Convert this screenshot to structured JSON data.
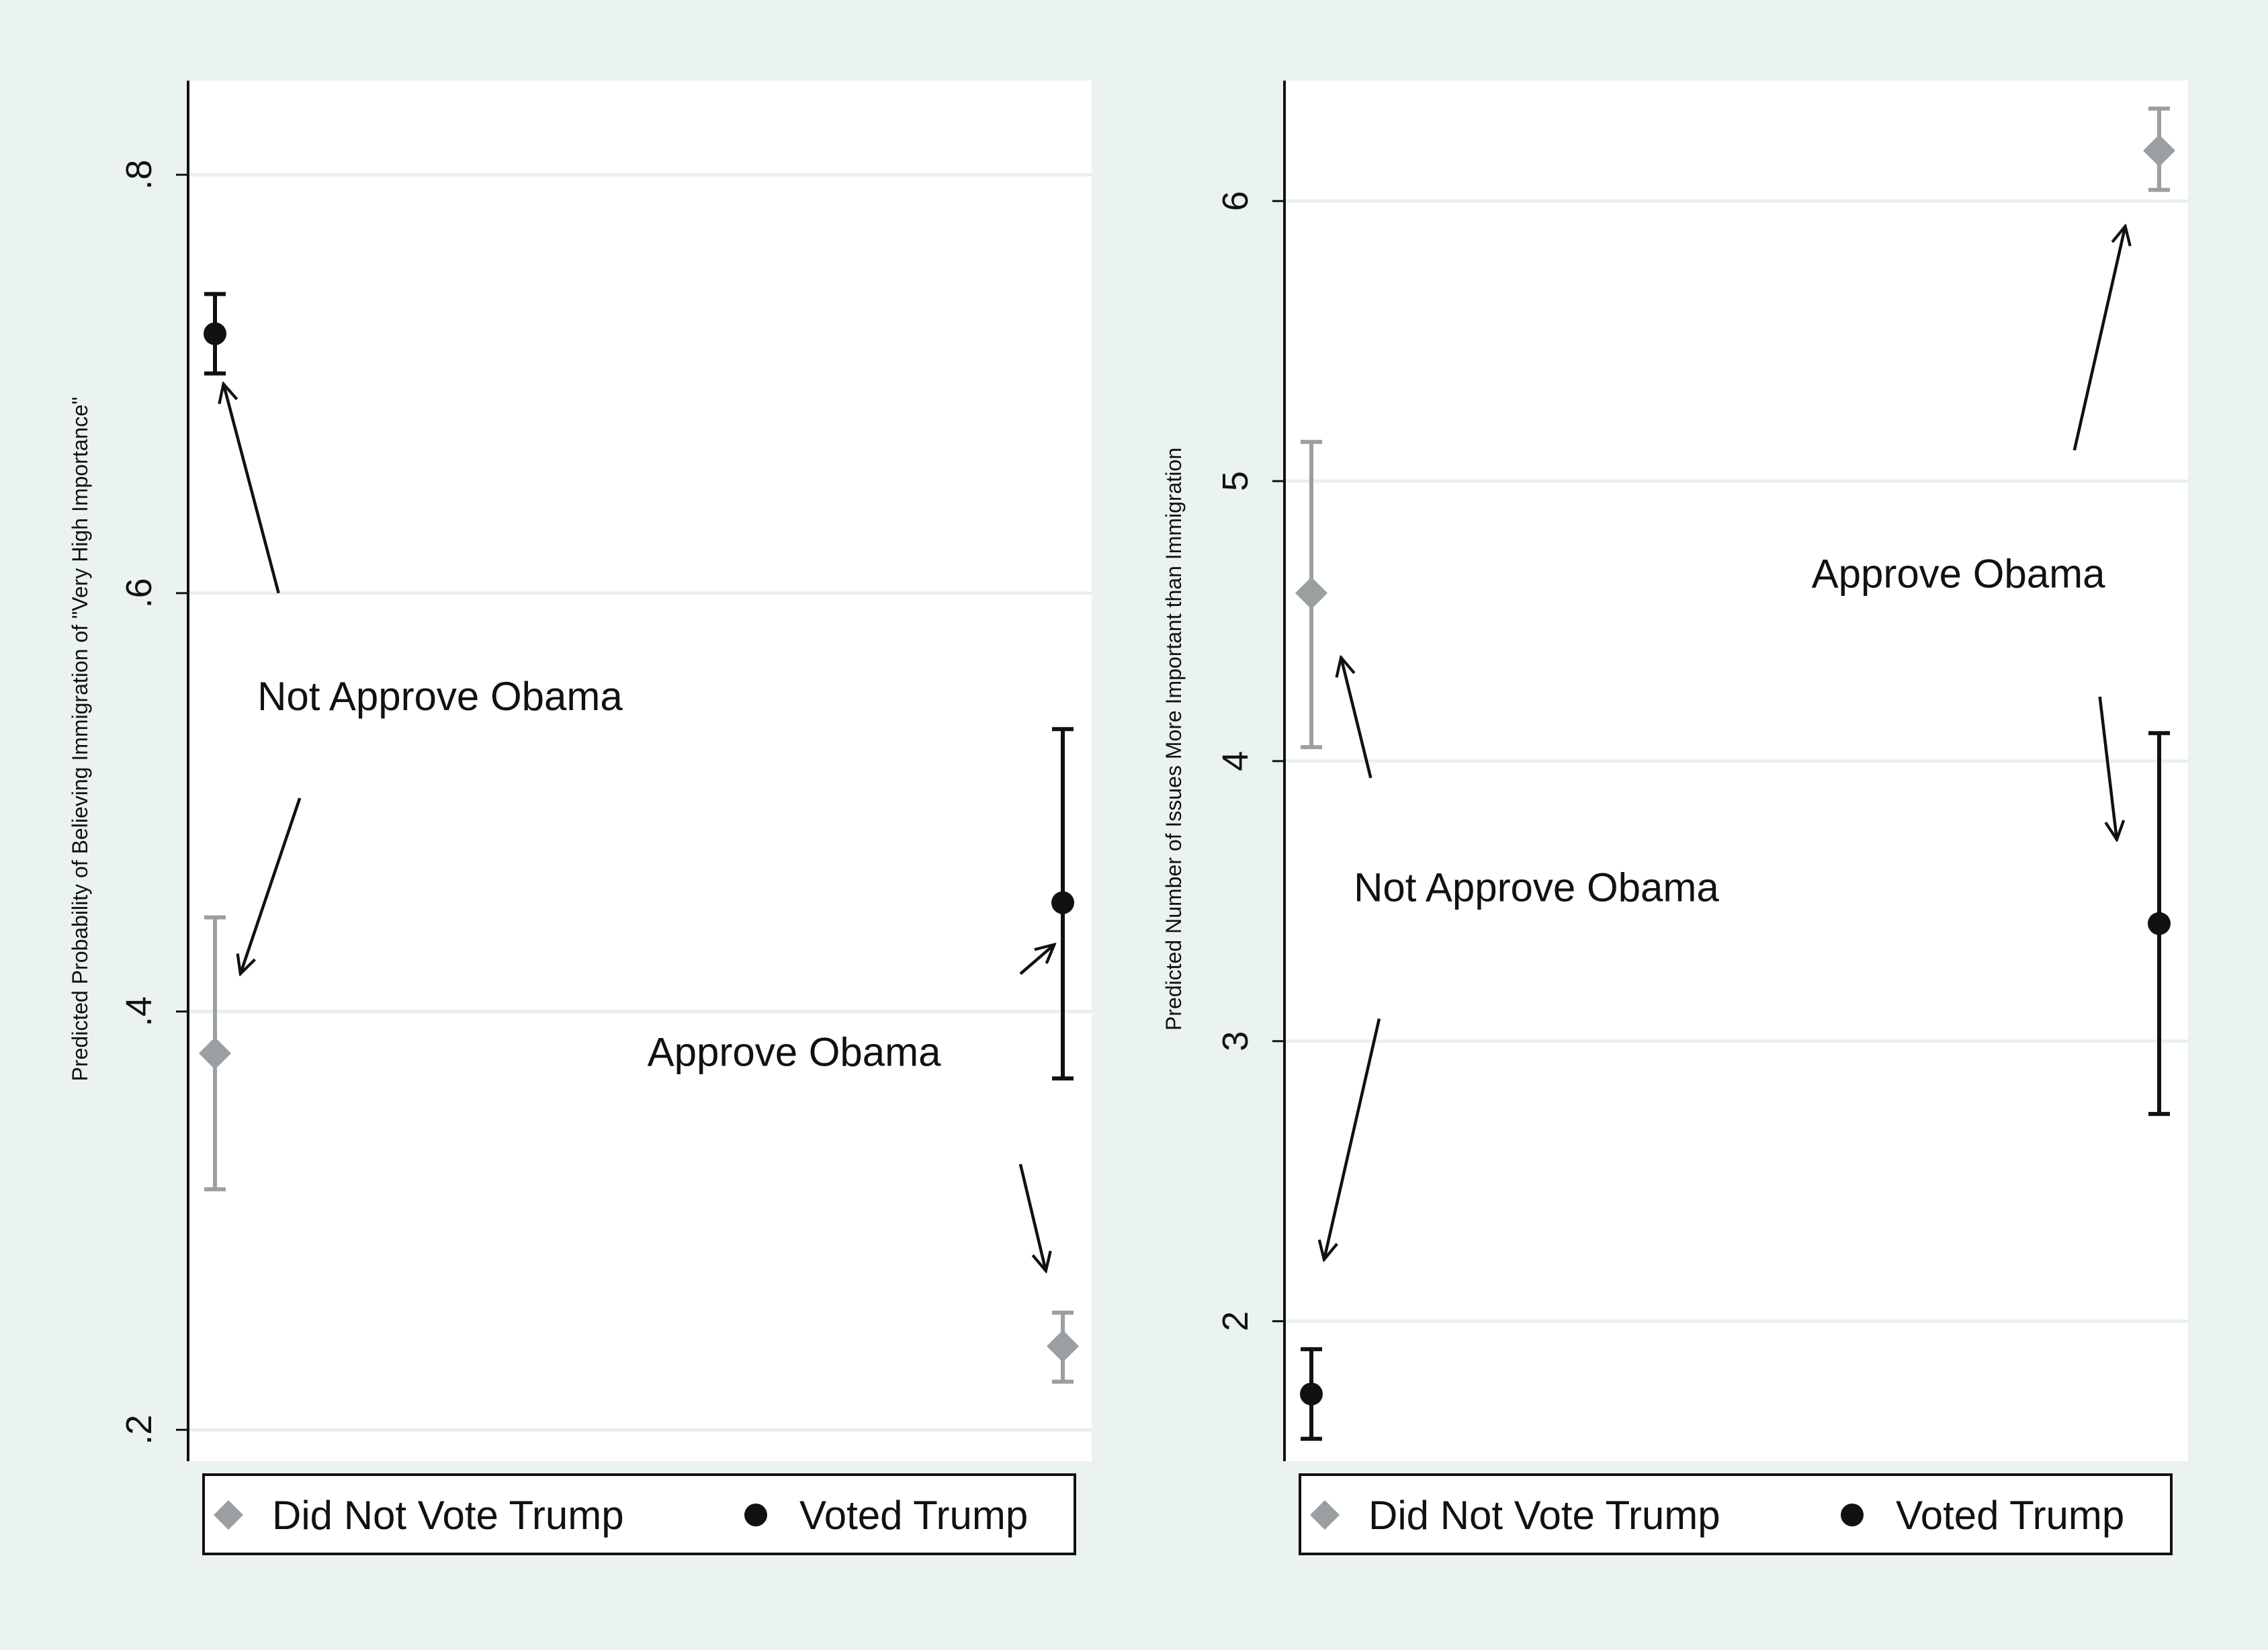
{
  "colors": {
    "background": "#eaf3f2",
    "plot_background": "#ffffff",
    "did_not_vote_trump": "#9a9fa1",
    "voted_trump": "#111111"
  },
  "legend": [
    {
      "label": "Did Not Vote Trump",
      "marker": "diamond",
      "color": "#9a9fa1"
    },
    {
      "label": "Voted Trump",
      "marker": "circle",
      "color": "#111111"
    }
  ],
  "chart_data": [
    {
      "type": "scatter",
      "error_bars": true,
      "ylabel": "Predicted Probability of Believing Immigration of \"Very High Importance\"",
      "xlabel": "",
      "ylim": [
        0.185,
        0.845
      ],
      "yticks": [
        0.2,
        0.4,
        0.6,
        0.8
      ],
      "ytick_labels": [
        ".2",
        ".4",
        ".6",
        ".8"
      ],
      "xlim": [
        -0.03,
        1.03
      ],
      "grid": true,
      "legend_position": "bottom",
      "series": [
        {
          "name": "Did Not Vote Trump",
          "marker": "diamond",
          "points": [
            {
              "x": 0,
              "y": 0.38,
              "lo": 0.315,
              "hi": 0.445
            },
            {
              "x": 1,
              "y": 0.24,
              "lo": 0.223,
              "hi": 0.256
            }
          ]
        },
        {
          "name": "Voted Trump",
          "marker": "circle",
          "points": [
            {
              "x": 0,
              "y": 0.724,
              "lo": 0.705,
              "hi": 0.743
            },
            {
              "x": 1,
              "y": 0.452,
              "lo": 0.368,
              "hi": 0.535
            }
          ]
        }
      ],
      "annotations": [
        {
          "text": "Not Approve Obama",
          "x": 0.05,
          "y": 0.544,
          "arrows": [
            {
              "from": [
                0.075,
                0.6
              ],
              "to": [
                0.01,
                0.7
              ]
            },
            {
              "from": [
                0.1,
                0.502
              ],
              "to": [
                0.03,
                0.418
              ]
            }
          ]
        },
        {
          "text": "Approve Obama",
          "x": 0.51,
          "y": 0.374,
          "arrows": [
            {
              "from": [
                0.95,
                0.418
              ],
              "to": [
                0.99,
                0.432
              ]
            },
            {
              "from": [
                0.95,
                0.327
              ],
              "to": [
                0.98,
                0.276
              ]
            }
          ]
        }
      ]
    },
    {
      "type": "scatter",
      "error_bars": true,
      "ylabel": "Predicted Number of Issues More Important than Immigration",
      "xlabel": "",
      "ylim": [
        1.5,
        6.43
      ],
      "yticks": [
        2,
        3,
        4,
        5,
        6
      ],
      "ytick_labels": [
        "2",
        "3",
        "4",
        "5",
        "6"
      ],
      "xlim": [
        -0.03,
        1.03
      ],
      "grid": true,
      "legend_position": "bottom",
      "series": [
        {
          "name": "Did Not Vote Trump",
          "marker": "diamond",
          "points": [
            {
              "x": 0,
              "y": 4.6,
              "lo": 4.05,
              "hi": 5.14
            },
            {
              "x": 1,
              "y": 6.18,
              "lo": 6.04,
              "hi": 6.33
            }
          ]
        },
        {
          "name": "Voted Trump",
          "marker": "circle",
          "points": [
            {
              "x": 0,
              "y": 1.74,
              "lo": 1.58,
              "hi": 1.9
            },
            {
              "x": 1,
              "y": 3.42,
              "lo": 2.74,
              "hi": 4.1
            }
          ]
        }
      ],
      "annotations": [
        {
          "text": "Not Approve Obama",
          "x": 0.05,
          "y": 3.5,
          "arrows": [
            {
              "from": [
                0.07,
                3.94
              ],
              "to": [
                0.035,
                4.37
              ]
            },
            {
              "from": [
                0.08,
                3.08
              ],
              "to": [
                0.015,
                2.22
              ]
            }
          ]
        },
        {
          "text": "Approve Obama",
          "x": 0.59,
          "y": 4.62,
          "arrows": [
            {
              "from": [
                0.9,
                5.11
              ],
              "to": [
                0.96,
                5.91
              ]
            },
            {
              "from": [
                0.93,
                4.23
              ],
              "to": [
                0.95,
                3.72
              ]
            }
          ]
        }
      ]
    }
  ]
}
